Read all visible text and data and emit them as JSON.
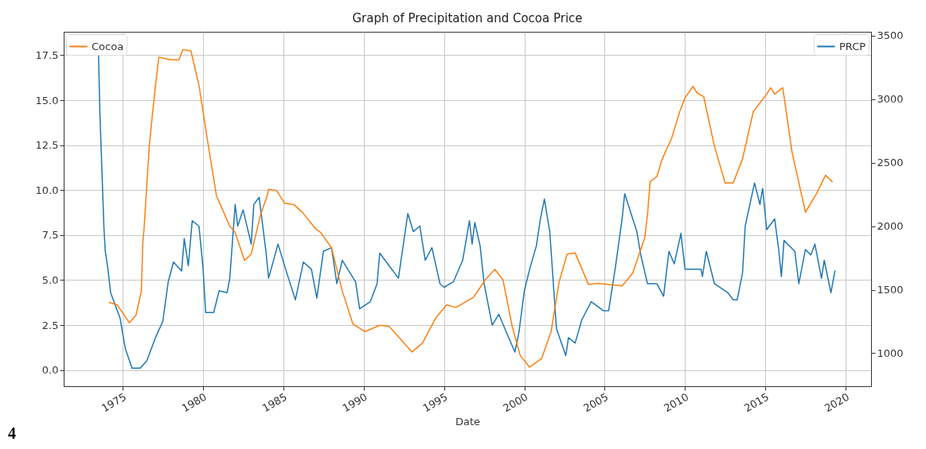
{
  "chart_data": {
    "type": "line",
    "title": "Graph of Precipitation and Cocoa Price",
    "xlabel": "Date",
    "annotations": [
      "4"
    ],
    "xlim": [
      "1971-05",
      "2021-08"
    ],
    "xticks": [
      "1975",
      "1980",
      "1985",
      "1990",
      "1995",
      "2000",
      "2005",
      "2010",
      "2015",
      "2020"
    ],
    "ylim": [
      -0.9,
      18.8
    ],
    "yticks": [
      {
        "value": 0,
        "label": "0.0"
      },
      {
        "value": 2.5,
        "label": "2.5"
      },
      {
        "value": 5,
        "label": "5.0"
      },
      {
        "value": 7.5,
        "label": "7.5"
      },
      {
        "value": 10,
        "label": "10.0"
      },
      {
        "value": 12.5,
        "label": "12.5"
      },
      {
        "value": 15,
        "label": "15.0"
      },
      {
        "value": 17.5,
        "label": "17.5"
      }
    ],
    "y2lim": [
      740,
      3530
    ],
    "y2ticks": [
      1000,
      1500,
      2000,
      2500,
      3000,
      3500
    ],
    "grid": true,
    "legend": "top",
    "series": [
      {
        "name": "Cocoa",
        "color": "#ff7f0e",
        "axis": "y2",
        "x": [
          "1974-03",
          "1974-09",
          "1975-06",
          "1975-11",
          "1976-03",
          "1976-04",
          "1976-05",
          "1976-09",
          "1977-01",
          "1977-04",
          "1978-01",
          "1978-07",
          "1978-10",
          "1979-04",
          "1979-10",
          "1980-04",
          "1980-11",
          "1981-09",
          "1982-01",
          "1982-08",
          "1983-01",
          "1983-08",
          "1984-01",
          "1984-02",
          "1984-08",
          "1985-02",
          "1985-09",
          "1986-04",
          "1987-01",
          "1987-05",
          "1988-01",
          "1988-09",
          "1989-05",
          "1990-02",
          "1991-01",
          "1991-08",
          "1992-03",
          "1993-01",
          "1993-09",
          "1994-07",
          "1995-03",
          "1995-10",
          "1996-11",
          "1997-08",
          "1998-03",
          "1998-09",
          "1999-04",
          "1999-10",
          "2000-05",
          "2001-02",
          "2001-09",
          "2002-03",
          "2002-09",
          "2003-03",
          "2004-01",
          "2004-08",
          "2005-04",
          "2006-02",
          "2006-10",
          "2007-07",
          "2007-09",
          "2007-11",
          "2008-04",
          "2008-08",
          "2009-03",
          "2009-09",
          "2010-01",
          "2010-07",
          "2010-10",
          "2011-03",
          "2011-11",
          "2012-07",
          "2013-01",
          "2013-08",
          "2014-04",
          "2015-02",
          "2015-05",
          "2015-08",
          "2016-02",
          "2016-09",
          "2017-07",
          "2018-03",
          "2018-10",
          "2019-03"
        ],
        "values": [
          1400,
          1380,
          1240,
          1300,
          1490,
          1860,
          1980,
          2650,
          3060,
          3330,
          3310,
          3310,
          3390,
          3380,
          3110,
          2700,
          2240,
          2000,
          1950,
          1730,
          1780,
          2090,
          2240,
          2290,
          2280,
          2180,
          2170,
          2100,
          1980,
          1950,
          1830,
          1490,
          1230,
          1170,
          1220,
          1210,
          1130,
          1010,
          1080,
          1280,
          1380,
          1360,
          1440,
          1580,
          1660,
          1580,
          1210,
          980,
          890,
          960,
          1170,
          1560,
          1780,
          1790,
          1540,
          1550,
          1540,
          1530,
          1630,
          1910,
          2090,
          2350,
          2390,
          2530,
          2690,
          2900,
          3010,
          3100,
          3050,
          3020,
          2630,
          2340,
          2340,
          2530,
          2900,
          3040,
          3090,
          3040,
          3090,
          2580,
          2110,
          2250,
          2400,
          2350
        ]
      },
      {
        "name": "PRCP",
        "color": "#1f77b4",
        "x": [
          "1973-07",
          "1973-08",
          "1973-11",
          "1973-12",
          "1974-02",
          "1974-04",
          "1974-11",
          "1975-03",
          "1975-08",
          "1976-02",
          "1976-07",
          "1977-02",
          "1977-07",
          "1977-11",
          "1978-03",
          "1978-09",
          "1978-11",
          "1979-02",
          "1979-05",
          "1979-10",
          "1980-01",
          "1980-03",
          "1980-09",
          "1981-01",
          "1981-07",
          "1981-09",
          "1982-01",
          "1982-03",
          "1982-07",
          "1983-01",
          "1983-03",
          "1983-07",
          "1983-12",
          "1984-02",
          "1984-09",
          "1985-04",
          "1985-10",
          "1986-04",
          "1986-10",
          "1987-02",
          "1987-07",
          "1988-01",
          "1988-05",
          "1988-09",
          "1989-07",
          "1989-10",
          "1990-06",
          "1990-11",
          "1991-01",
          "1991-08",
          "1992-03",
          "1992-10",
          "1993-02",
          "1993-07",
          "1993-11",
          "1994-04",
          "1994-10",
          "1995-01",
          "1995-08",
          "1996-03",
          "1996-08",
          "1996-10",
          "1996-12",
          "1997-04",
          "1997-07",
          "1998-01",
          "1998-06",
          "1998-11",
          "1999-06",
          "1999-09",
          "2000-01",
          "2000-05",
          "2000-10",
          "2001-01",
          "2001-04",
          "2001-08",
          "2002-01",
          "2002-08",
          "2002-10",
          "2003-03",
          "2003-08",
          "2004-03",
          "2004-12",
          "2005-04",
          "2005-09",
          "2006-02",
          "2006-04",
          "2007-01",
          "2007-04",
          "2007-09",
          "2008-04",
          "2008-09",
          "2009-01",
          "2009-05",
          "2009-10",
          "2010-01",
          "2011-01",
          "2011-02",
          "2011-05",
          "2011-11",
          "2012-09",
          "2013-01",
          "2013-04",
          "2013-08",
          "2013-10",
          "2014-05",
          "2014-09",
          "2014-11",
          "2015-02",
          "2015-08",
          "2015-11",
          "2016-01",
          "2016-03",
          "2016-11",
          "2017-02",
          "2017-07",
          "2017-11",
          "2018-02",
          "2018-07",
          "2018-09",
          "2019-02",
          "2019-05"
        ],
        "values": [
          17.5,
          14.3,
          7.9,
          6.6,
          5.6,
          4.3,
          2.9,
          1.2,
          0.1,
          0.1,
          0.5,
          1.9,
          2.7,
          4.9,
          6.0,
          5.5,
          7.3,
          5.8,
          8.3,
          8.0,
          5.7,
          3.2,
          3.2,
          4.4,
          4.3,
          5.1,
          9.2,
          8.0,
          8.9,
          7.0,
          9.2,
          9.6,
          6.6,
          5.1,
          7.0,
          5.3,
          3.9,
          6.0,
          5.6,
          4.0,
          6.6,
          6.8,
          4.8,
          6.1,
          4.9,
          3.4,
          3.8,
          4.8,
          6.5,
          5.8,
          5.1,
          8.7,
          7.7,
          8.0,
          6.1,
          6.8,
          4.8,
          4.6,
          4.9,
          6.1,
          8.3,
          7.0,
          8.2,
          6.9,
          4.8,
          2.5,
          3.1,
          2.2,
          1.0,
          2.1,
          4.4,
          5.6,
          6.9,
          8.4,
          9.5,
          7.7,
          2.3,
          0.8,
          1.8,
          1.5,
          2.8,
          3.8,
          3.3,
          3.3,
          5.7,
          8.4,
          9.8,
          7.7,
          6.4,
          4.8,
          4.8,
          4.1,
          6.6,
          5.9,
          7.6,
          5.6,
          5.6,
          5.2,
          6.6,
          4.8,
          4.3,
          3.9,
          3.9,
          5.4,
          8.0,
          10.4,
          9.2,
          10.1,
          7.8,
          8.4,
          6.7,
          5.2,
          7.2,
          6.6,
          4.8,
          6.7,
          6.4,
          7.0,
          5.1,
          6.1,
          4.3,
          5.5
        ]
      }
    ]
  }
}
